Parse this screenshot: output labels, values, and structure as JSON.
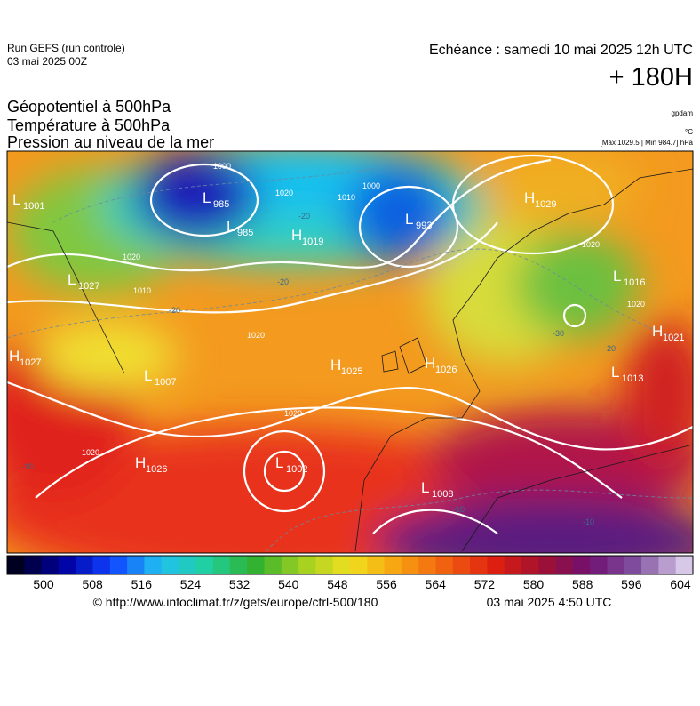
{
  "header": {
    "run": "Run GEFS (run controle)",
    "run_date": "03 mai 2025 00Z",
    "valid": "Echéance : samedi 10 mai 2025 12h UTC",
    "lead": "+ 180H"
  },
  "titles": [
    "Géopotentiel à 500hPa",
    "Température à 500hPa",
    "Pression au niveau de la mer"
  ],
  "units": {
    "geopotential": "gpdam",
    "temperature": "°C",
    "pressure": "[Max 1029.5 | Min 984.7] hPa"
  },
  "map": {
    "centers": [
      {
        "letter": "L",
        "value": "1001"
      },
      {
        "letter": "L",
        "value": "985"
      },
      {
        "letter": "L",
        "value": "985"
      },
      {
        "letter": "H",
        "value": "1019"
      },
      {
        "letter": "L",
        "value": "993"
      },
      {
        "letter": "H",
        "value": "1029"
      },
      {
        "letter": "L",
        "value": "1027"
      },
      {
        "letter": "L",
        "value": "1016"
      },
      {
        "letter": "H",
        "value": "1021"
      },
      {
        "letter": "H",
        "value": "1027"
      },
      {
        "letter": "L",
        "value": "1007"
      },
      {
        "letter": "H",
        "value": "1025"
      },
      {
        "letter": "H",
        "value": "1026"
      },
      {
        "letter": "L",
        "value": "1013"
      },
      {
        "letter": "H",
        "value": "1026"
      },
      {
        "letter": "L",
        "value": "1002"
      },
      {
        "letter": "L",
        "value": "1008"
      }
    ],
    "isobar_labels": [
      "1000",
      "1010",
      "1000",
      "1020",
      "1010",
      "1020",
      "1020",
      "1020",
      "1020",
      "1020",
      "1020"
    ],
    "temperature_labels": [
      "-20",
      "-20",
      "-30",
      "-20",
      "-20",
      "-10",
      "-10",
      "-10"
    ]
  },
  "colorbar": {
    "labels": [
      "500",
      "508",
      "516",
      "524",
      "532",
      "540",
      "548",
      "556",
      "564",
      "572",
      "580",
      "588",
      "596",
      "604"
    ]
  },
  "footer": {
    "source": "© http://www.infoclimat.fr/z/gefs/europe/ctrl-500/180",
    "generated": "03 mai 2025  4:50 UTC"
  }
}
